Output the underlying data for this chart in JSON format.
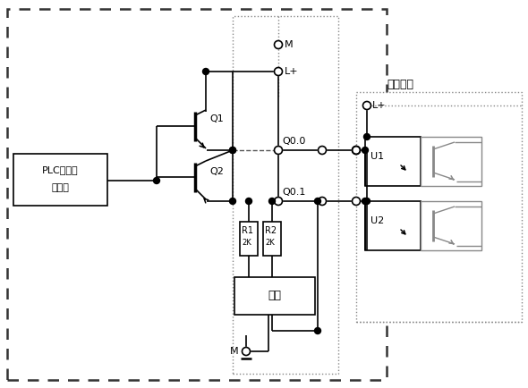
{
  "fig_width": 5.9,
  "fig_height": 4.34,
  "dpi": 100,
  "bg_color": "#ffffff",
  "lc": "#000000",
  "gray": "#888888",
  "labels": {
    "M_top": "M",
    "Lplus_top": "L+",
    "Q1": "Q1",
    "Q2": "Q2",
    "Q00": "Q0.0",
    "Q01": "Q0.1",
    "R1": "R1",
    "R1_val": "2K",
    "R2": "R2",
    "R2_val": "2K",
    "switch": "开关",
    "M_bot": "M",
    "PLC_line1": "PLC内部处",
    "PLC_line2": "理电路",
    "U1": "U1",
    "U2": "U2",
    "Lplus_right": "L+",
    "load_label": "负载电路"
  }
}
